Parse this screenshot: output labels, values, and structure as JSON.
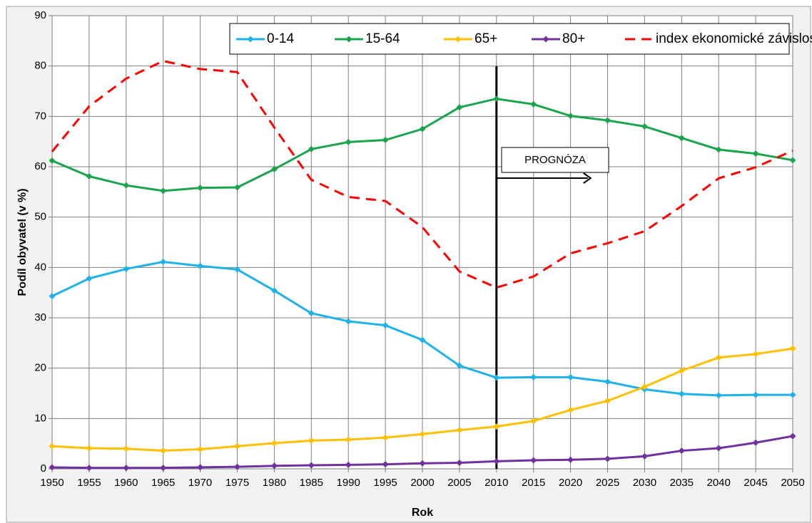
{
  "chart_data": {
    "type": "line",
    "y_label": "Podíl obyvatel (v %)",
    "x_label": "Rok",
    "x": [
      1950,
      1955,
      1960,
      1965,
      1970,
      1975,
      1980,
      1985,
      1990,
      1995,
      2000,
      2005,
      2010,
      2015,
      2020,
      2025,
      2030,
      2035,
      2040,
      2045,
      2050
    ],
    "xlim": [
      1950,
      2050
    ],
    "xticks": [
      1950,
      1955,
      1960,
      1965,
      1970,
      1975,
      1980,
      1985,
      1990,
      1995,
      2000,
      2005,
      2010,
      2015,
      2020,
      2025,
      2030,
      2035,
      2040,
      2045,
      2050
    ],
    "ylim": [
      0,
      90
    ],
    "yticks": [
      0,
      10,
      20,
      30,
      40,
      50,
      60,
      70,
      80,
      90
    ],
    "grid": true,
    "legend": "top-right",
    "annotation": {
      "text": "PROGNÓZA",
      "x": 2010
    },
    "series": [
      {
        "name": "0-14",
        "color": "#1fb1e8",
        "values": [
          34.3,
          37.8,
          39.7,
          41.1,
          40.3,
          39.6,
          35.4,
          30.9,
          29.3,
          28.5,
          25.6,
          20.5,
          18.1,
          18.2,
          18.2,
          17.3,
          15.8,
          14.9,
          14.6,
          14.7,
          14.7
        ]
      },
      {
        "name": "15-64",
        "color": "#1aa54d",
        "values": [
          61.2,
          58.1,
          56.3,
          55.2,
          55.8,
          55.9,
          59.5,
          63.5,
          64.9,
          65.3,
          67.5,
          71.8,
          73.5,
          72.4,
          70.1,
          69.2,
          68.0,
          65.7,
          63.4,
          62.6,
          61.3
        ]
      },
      {
        "name": "65+",
        "color": "#ffc000",
        "values": [
          4.5,
          4.1,
          4.0,
          3.6,
          3.9,
          4.5,
          5.1,
          5.6,
          5.8,
          6.2,
          6.9,
          7.7,
          8.4,
          9.5,
          11.7,
          13.5,
          16.3,
          19.5,
          22.1,
          22.8,
          23.9
        ]
      },
      {
        "name": "80+",
        "color": "#7030a0",
        "values": [
          0.3,
          0.2,
          0.2,
          0.2,
          0.3,
          0.4,
          0.6,
          0.7,
          0.8,
          0.9,
          1.1,
          1.2,
          1.5,
          1.7,
          1.8,
          2.0,
          2.5,
          3.6,
          4.1,
          5.2,
          6.5
        ]
      },
      {
        "name": "index ekonomické závislosti",
        "color": "#ff0000",
        "dashed": true,
        "values": [
          63,
          72,
          77.5,
          81,
          79.4,
          78.8,
          67.8,
          57.4,
          54,
          53.2,
          48,
          39.2,
          36,
          38.2,
          42.8,
          44.8,
          47.2,
          52.2,
          57.7,
          59.9,
          63.2
        ]
      }
    ]
  }
}
